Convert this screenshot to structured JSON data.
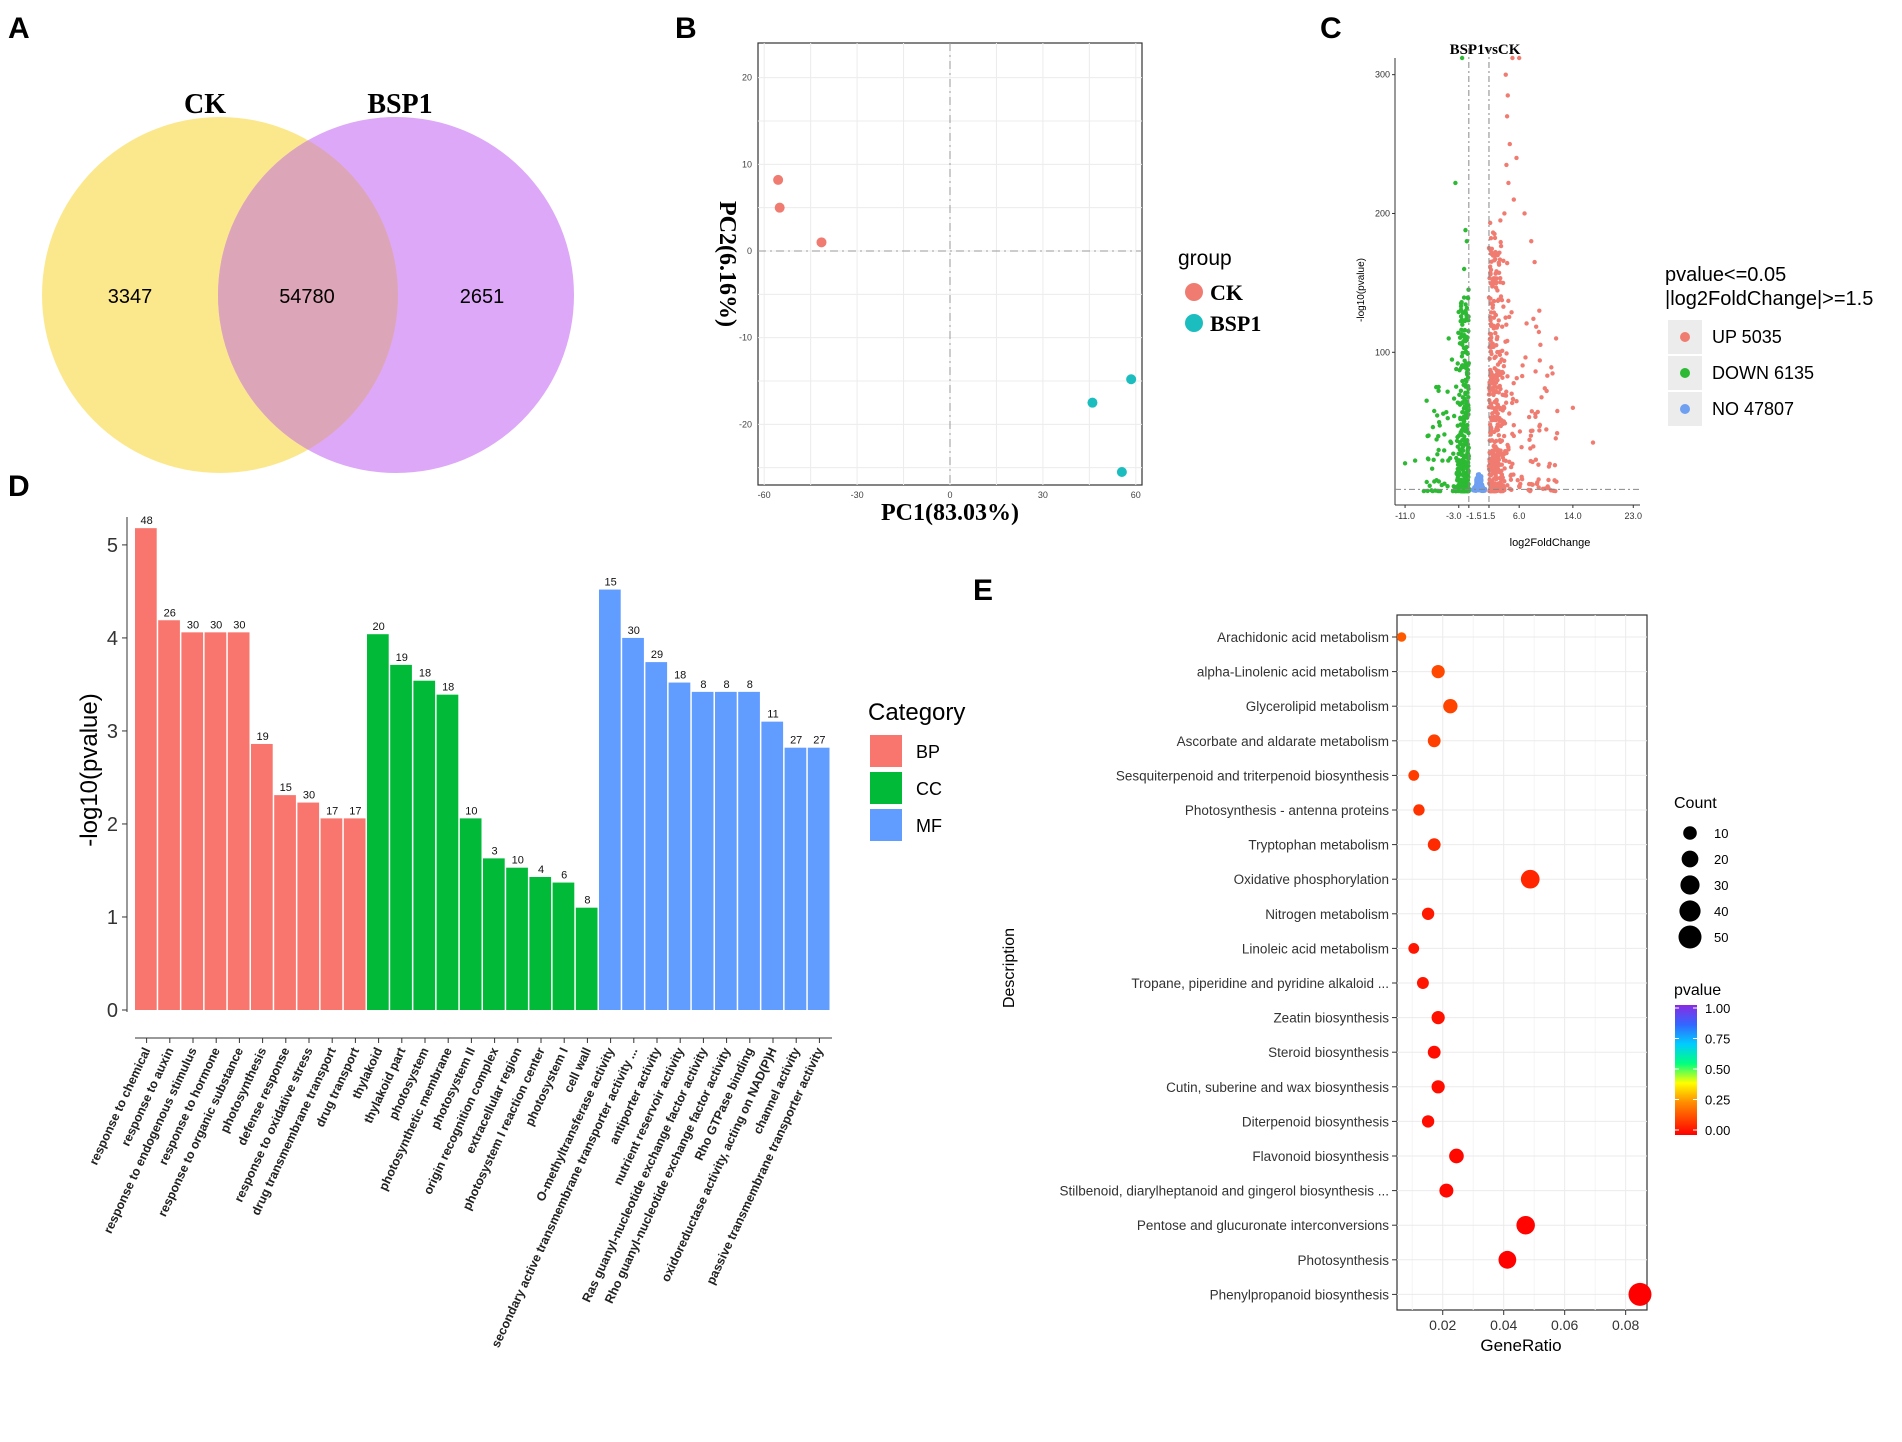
{
  "chart_data": [
    {
      "panel": "A",
      "type": "venn",
      "sets": [
        "CK",
        "BSP1"
      ],
      "values": {
        "ck_only": 3347,
        "shared": 54780,
        "bsp1_only": 2651
      },
      "colors": {
        "ck": "#FCE88C",
        "bsp1": "#DDA8F7",
        "overlap": "#DDA6B8"
      }
    },
    {
      "panel": "B",
      "type": "scatter",
      "xlabel": "PC1(83.03%)",
      "ylabel": "PC2(6.16%)",
      "xlim": [
        -62,
        62
      ],
      "ylim": [
        -27,
        24
      ],
      "xticks": [
        -60,
        -30,
        0,
        30,
        60
      ],
      "yticks": [
        -20,
        -10,
        0,
        10,
        20
      ],
      "legend_title": "group",
      "series": [
        {
          "name": "CK",
          "color": "#F07C71",
          "x": [
            -55.5,
            -55,
            -41.5
          ],
          "y": [
            8.2,
            5,
            1
          ]
        },
        {
          "name": "BSP1",
          "color": "#1CBDBF",
          "x": [
            46,
            58.5,
            55.5
          ],
          "y": [
            -17.5,
            -14.8,
            -25.5
          ]
        }
      ]
    },
    {
      "panel": "C",
      "type": "scatter",
      "subtype": "volcano",
      "title": "BSP1vsCK",
      "xlabel": "log2FoldChange",
      "ylabel": "-log10(pvalue)",
      "xticks": [
        "-11.0",
        "-3.0",
        "-1.5",
        "1.5",
        "6.0",
        "14.0",
        "23.0"
      ],
      "xtick_values": [
        -11,
        -3,
        -1.5,
        1.5,
        6,
        14,
        23
      ],
      "yticks": [
        100,
        200,
        300
      ],
      "xlim": [
        -12.5,
        24
      ],
      "ylim": [
        -10,
        312
      ],
      "threshold_pvalue_line": 1.3,
      "threshold_fc_lines": [
        -1.5,
        1.5
      ],
      "legend_title_line1": "pvalue<=0.05",
      "legend_title_line2": "|log2FoldChange|>=1.5",
      "legend": [
        {
          "label": "UP 5035",
          "color": "#F07C71"
        },
        {
          "label": "DOWN 6135",
          "color": "#2DB933"
        },
        {
          "label": "NO 47807",
          "color": "#6E9FF0"
        }
      ]
    },
    {
      "panel": "D",
      "type": "bar",
      "ylabel": "-log10(pvalue)",
      "ylim": [
        0,
        5.3
      ],
      "yticks": [
        0,
        1,
        2,
        3,
        4,
        5
      ],
      "legend_title": "Category",
      "category_colors": {
        "BP": "#F8766D",
        "CC": "#00BA38",
        "MF": "#619CFF"
      },
      "categories": [
        "response to chemical",
        "response to auxin",
        "response to endogenous stimulus",
        "response to hormone",
        "response to organic substance",
        "photosynthesis",
        "defense response",
        "response to oxidative stress",
        "drug transmembrane transport",
        "drug transport",
        "thylakoid",
        "thylakoid part",
        "photosystem",
        "photosynthetic membrane",
        "photosystem II",
        "origin recognition complex",
        "extracellular region",
        "photosystem I reaction center",
        "photosystem I",
        "cell wall",
        "O-methyltransferase activity",
        "secondary active transmembrane transporter activity ...",
        "antiporter activity",
        "nutrient reservoir activity",
        "Ras guanyl-nucleotide exchange factor activity",
        "Rho guanyl-nucleotide exchange factor activity",
        "Rho GTPase binding",
        "oxidoreductase activity, acting on NAD(P)H",
        "channel activity",
        "passive transmembrane transporter activity"
      ],
      "groups": [
        "BP",
        "BP",
        "BP",
        "BP",
        "BP",
        "BP",
        "BP",
        "BP",
        "BP",
        "BP",
        "CC",
        "CC",
        "CC",
        "CC",
        "CC",
        "CC",
        "CC",
        "CC",
        "CC",
        "CC",
        "MF",
        "MF",
        "MF",
        "MF",
        "MF",
        "MF",
        "MF",
        "MF",
        "MF",
        "MF"
      ],
      "values": [
        5.18,
        4.19,
        4.06,
        4.06,
        4.06,
        2.86,
        2.31,
        2.23,
        2.06,
        2.06,
        4.04,
        3.71,
        3.54,
        3.39,
        2.06,
        1.63,
        1.53,
        1.43,
        1.37,
        1.1,
        4.52,
        4.0,
        3.74,
        3.52,
        3.42,
        3.42,
        3.42,
        3.1,
        2.82,
        2.82
      ],
      "labels": [
        "48",
        "26",
        "30",
        "30",
        "30",
        "19",
        "15",
        "30",
        "17",
        "17",
        "20",
        "19",
        "18",
        "18",
        "10",
        "3",
        "10",
        "4",
        "6",
        "8",
        "15",
        "30",
        "29",
        "18",
        "8",
        "8",
        "8",
        "11",
        "27",
        "27"
      ]
    },
    {
      "panel": "E",
      "type": "scatter",
      "subtype": "dotplot",
      "xlabel": "GeneRatio",
      "ylabel": "Description",
      "xlim": [
        0.005,
        0.087
      ],
      "xticks": [
        "0.02",
        "0.04",
        "0.06",
        "0.08"
      ],
      "xtick_values": [
        0.02,
        0.04,
        0.06,
        0.08
      ],
      "size_legend_title": "Count",
      "size_legend_values": [
        "10",
        "20",
        "30",
        "40",
        "50"
      ],
      "color_legend_title": "pvalue",
      "color_legend_ticks": [
        "1.00",
        "0.75",
        "0.50",
        "0.25",
        "0.00"
      ],
      "descriptions": [
        "Arachidonic acid metabolism",
        "alpha-Linolenic acid metabolism",
        "Glycerolipid metabolism",
        "Ascorbate and aldarate metabolism",
        "Sesquiterpenoid and triterpenoid biosynthesis",
        "Photosynthesis - antenna proteins",
        "Tryptophan metabolism",
        "Oxidative phosphorylation",
        "Nitrogen metabolism",
        "Linoleic acid metabolism",
        "Tropane, piperidine and pyridine alkaloid ...",
        "Zeatin biosynthesis",
        "Steroid biosynthesis",
        "Cutin, suberine and wax biosynthesis",
        "Diterpenoid biosynthesis",
        "Flavonoid biosynthesis",
        "Stilbenoid, diarylheptanoid and gingerol biosynthesis ...",
        "Pentose and glucuronate interconversions",
        "Photosynthesis",
        "Phenylpropanoid biosynthesis"
      ],
      "gene_ratio": [
        0.0065,
        0.0185,
        0.0225,
        0.0172,
        0.0105,
        0.0122,
        0.0172,
        0.0487,
        0.0152,
        0.0105,
        0.0135,
        0.0185,
        0.0172,
        0.0185,
        0.0152,
        0.0245,
        0.0212,
        0.0472,
        0.0412,
        0.0847
      ],
      "count": [
        2,
        9,
        12,
        8,
        4,
        5,
        8,
        28,
        7,
        4,
        6,
        9,
        8,
        9,
        7,
        13,
        11,
        27,
        24,
        50
      ],
      "pvalue": [
        0.21,
        0.17,
        0.16,
        0.15,
        0.14,
        0.12,
        0.1,
        0.09,
        0.06,
        0.05,
        0.05,
        0.04,
        0.03,
        0.03,
        0.03,
        0.02,
        0.02,
        0.01,
        0.005,
        0.0001
      ]
    }
  ],
  "panels": {
    "a": "A",
    "b": "B",
    "c": "C",
    "d": "D",
    "e": "E"
  }
}
